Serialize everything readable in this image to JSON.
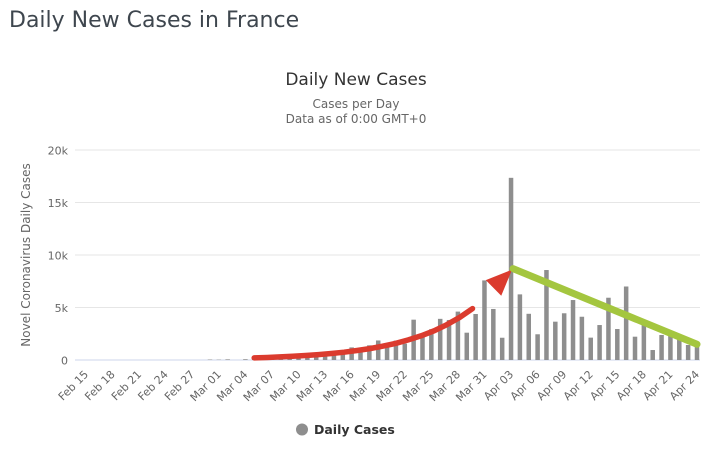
{
  "page": {
    "title": "Daily New Cases in France"
  },
  "chart_data": {
    "type": "bar",
    "title": "Daily New Cases",
    "subtitle": [
      "Cases per Day",
      "Data as of 0:00 GMT+0"
    ],
    "ylabel": "Novel Coronavirus Daily Cases",
    "ylim": [
      0,
      20000
    ],
    "yticks": [
      "0",
      "5k",
      "10k",
      "15k",
      "20k"
    ],
    "x_tick_every": 3,
    "grid": true,
    "legend": [
      "Daily Cases"
    ],
    "legend_position": "bottom-center",
    "categories": [
      "Feb 15",
      "Feb 16",
      "Feb 17",
      "Feb 18",
      "Feb 19",
      "Feb 20",
      "Feb 21",
      "Feb 22",
      "Feb 23",
      "Feb 24",
      "Feb 25",
      "Feb 26",
      "Feb 27",
      "Feb 28",
      "Feb 29",
      "Mar 01",
      "Mar 02",
      "Mar 03",
      "Mar 04",
      "Mar 05",
      "Mar 06",
      "Mar 07",
      "Mar 08",
      "Mar 09",
      "Mar 10",
      "Mar 11",
      "Mar 12",
      "Mar 13",
      "Mar 14",
      "Mar 15",
      "Mar 16",
      "Mar 17",
      "Mar 18",
      "Mar 19",
      "Mar 20",
      "Mar 21",
      "Mar 22",
      "Mar 23",
      "Mar 24",
      "Mar 25",
      "Mar 26",
      "Mar 27",
      "Mar 28",
      "Mar 29",
      "Mar 30",
      "Mar 31",
      "Apr 01",
      "Apr 02",
      "Apr 03",
      "Apr 04",
      "Apr 05",
      "Apr 06",
      "Apr 07",
      "Apr 08",
      "Apr 09",
      "Apr 10",
      "Apr 11",
      "Apr 12",
      "Apr 13",
      "Apr 14",
      "Apr 15",
      "Apr 16",
      "Apr 17",
      "Apr 18",
      "Apr 19",
      "Apr 20",
      "Apr 21",
      "Apr 22",
      "Apr 23",
      "Apr 24"
    ],
    "values": [
      0,
      0,
      0,
      0,
      0,
      0,
      0,
      0,
      0,
      0,
      2,
      3,
      20,
      19,
      43,
      30,
      61,
      21,
      73,
      140,
      190,
      340,
      180,
      290,
      370,
      500,
      600,
      790,
      840,
      920,
      1200,
      1100,
      1400,
      1860,
      1620,
      1850,
      1560,
      3840,
      2450,
      2930,
      3920,
      3810,
      4610,
      2600,
      4380,
      7580,
      4860,
      2120,
      17350,
      6250,
      4400,
      2450,
      8570,
      3650,
      4450,
      5710,
      4120,
      2130,
      3330,
      5930,
      2950,
      7000,
      2220,
      3430,
      950,
      2380,
      2480,
      2290,
      1430,
      1270
    ],
    "annotations": [
      {
        "type": "curved-arrow",
        "color": "#db3b2e",
        "from_category": "Mar 05",
        "from_value": 200,
        "to_category": "Apr 03",
        "to_value": 8600,
        "description": "exponential rise trend arrow"
      },
      {
        "type": "line",
        "color": "#a4c63f",
        "from_category": "Apr 03",
        "from_value": 8700,
        "to_category": "Apr 24",
        "to_value": 1500,
        "description": "declining trend line"
      }
    ],
    "colors": {
      "bar": "#8e8e8e",
      "grid": "#e6e6e6",
      "axis_line": "#ccd6eb",
      "labels": "#666666",
      "title": "#333333",
      "page_title": "#3e464e",
      "red_arrow": "#db3b2e",
      "green_line": "#a4c63f"
    }
  }
}
